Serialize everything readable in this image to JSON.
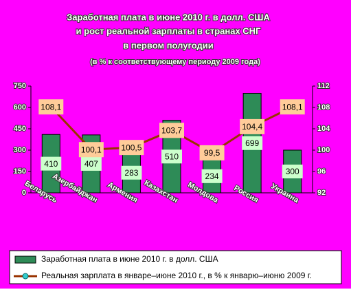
{
  "chart_data": {
    "type": "bar-line",
    "title": [
      "Заработная плата в июне 2010 г. в долл. США",
      "и рост реальной зарплаты в странах СНГ",
      "в первом полугодии"
    ],
    "subtitle": "(в % к соответствующему периоду 2009 года)",
    "categories": [
      "Беларусь",
      "Азербайджан",
      "Армения",
      "Казахстан",
      "Молдова",
      "Россия",
      "Украина"
    ],
    "series": [
      {
        "name": "Заработная плата в июне 2010 г. в долл. США",
        "type": "bar",
        "color": "#2e8b57",
        "values": [
          410,
          407,
          283,
          510,
          234,
          699,
          300
        ]
      },
      {
        "name": "Реальная зарплата в январе–июне 2010 г., в % к январю–июню 2009 г.",
        "type": "line",
        "axis": "y2",
        "color": "#993300",
        "marker_color": "#33cccc",
        "values": [
          108.1,
          100.1,
          100.5,
          103.7,
          99.5,
          104.4,
          108.1
        ],
        "value_labels": [
          "108,1",
          "100,1",
          "100,5",
          "103,7",
          "99,5",
          "104,4",
          "108,1"
        ]
      }
    ],
    "ylim": [
      0,
      750
    ],
    "yticks": [
      0,
      150,
      300,
      450,
      600,
      750
    ],
    "y2lim": [
      92,
      112
    ],
    "y2ticks": [
      92,
      96,
      100,
      104,
      108,
      112
    ],
    "background": "#ff00ff",
    "legend": "bottom"
  }
}
